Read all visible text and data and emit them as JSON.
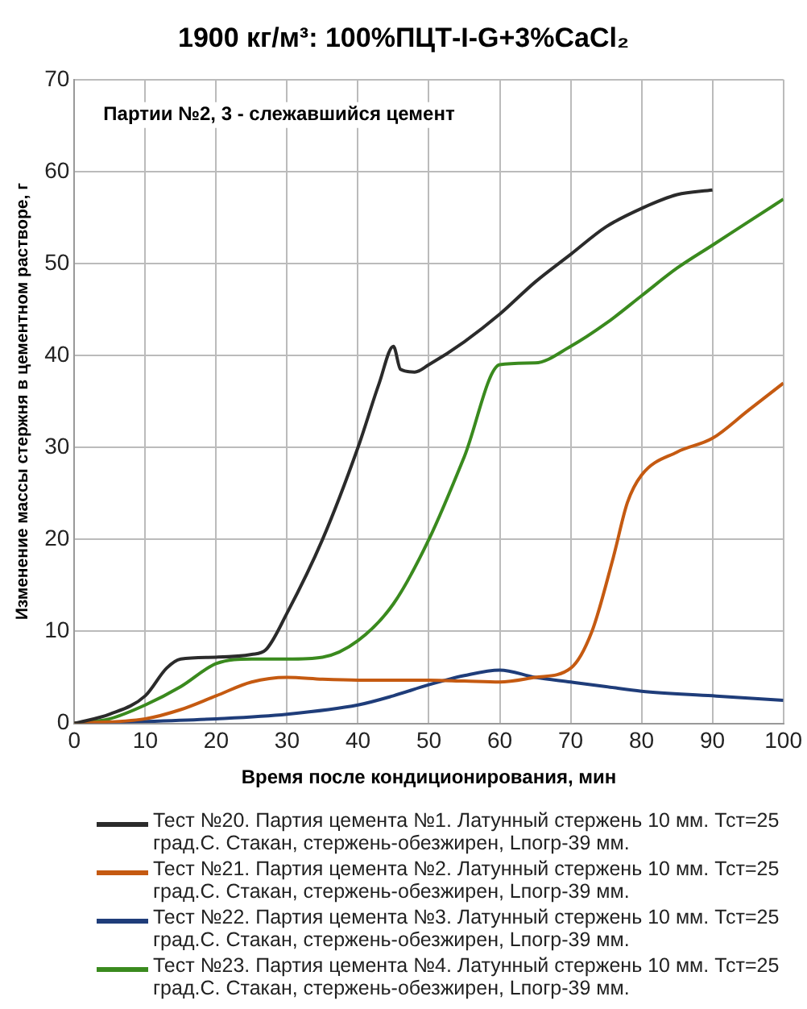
{
  "chart_data": {
    "type": "line",
    "title": "1900 кг/м³: 100%ПЦТ-I-G+3%CaCl₂",
    "xlabel": "Время после кондиционирования, мин",
    "ylabel": "Изменение массы стержня в цементном растворе, г",
    "annotations": [
      "Партии №2, 3 - слежавшийся цемент"
    ],
    "xlim": [
      0,
      100
    ],
    "xticks": [
      0,
      10,
      20,
      30,
      40,
      50,
      60,
      70,
      80,
      90,
      100
    ],
    "ylim": [
      0,
      70
    ],
    "yticks": [
      0,
      10,
      20,
      30,
      40,
      50,
      60,
      70
    ],
    "grid": true,
    "legend": "bottom",
    "marker": "none",
    "line_style": "solid",
    "series": [
      {
        "name": "Тест №20. Партия цемента №1. Латунный стержень 10 мм. Тст=25 град.С. Стакан, стержень-обезжирен, Lпогр-39 мм.",
        "color": "#2b2b2b",
        "x": [
          0,
          5,
          10,
          13,
          15,
          20,
          25,
          27,
          30,
          35,
          40,
          43,
          45,
          46,
          48,
          50,
          55,
          60,
          65,
          70,
          75,
          80,
          85,
          90
        ],
        "values": [
          0,
          1,
          3,
          6,
          7,
          7.2,
          7.5,
          8,
          12,
          20,
          30,
          37,
          41,
          38.5,
          38.2,
          39,
          41.5,
          44.5,
          48,
          51,
          54,
          56,
          57.5,
          58
        ]
      },
      {
        "name": "Тест №21. Партия цемента №2. Латунный стержень 10 мм. Тст=25 град.С. Стакан, стержень-обезжирен, Lпогр-39 мм.",
        "color": "#c55a11",
        "x": [
          0,
          10,
          15,
          20,
          25,
          30,
          35,
          40,
          50,
          55,
          60,
          65,
          70,
          73,
          76,
          78,
          80,
          85,
          90,
          95,
          100
        ],
        "values": [
          0,
          0.5,
          1.5,
          3,
          4.5,
          5,
          4.8,
          4.7,
          4.7,
          4.6,
          4.5,
          5,
          6,
          10,
          18,
          24,
          27,
          29.5,
          31,
          34,
          37
        ]
      },
      {
        "name": "Тест №22. Партия цемента №3. Латунный стержень 10 мм. Тст=25 град.С. Стакан, стержень-обезжирен, Lпогр-39 мм.",
        "color": "#1f3d7a",
        "x": [
          0,
          10,
          20,
          30,
          40,
          45,
          50,
          55,
          60,
          65,
          70,
          75,
          80,
          90,
          100
        ],
        "values": [
          0,
          0.2,
          0.5,
          1,
          2,
          3,
          4.2,
          5.2,
          5.8,
          5,
          4.5,
          4,
          3.5,
          3,
          2.5
        ]
      },
      {
        "name": "Тест №23. Партия цемента №4. Латунный стержень 10 мм. Тст=25 град.С. Стакан, стержень-обезжирен, Lпогр-39 мм.",
        "color": "#3a8a1e",
        "x": [
          0,
          5,
          10,
          15,
          20,
          25,
          30,
          35,
          40,
          45,
          50,
          55,
          60,
          65,
          70,
          75,
          80,
          85,
          90,
          95,
          100
        ],
        "values": [
          0,
          0.5,
          2,
          4,
          6.5,
          7,
          7,
          7.2,
          9,
          13,
          20,
          29,
          39,
          39.2,
          41,
          43.5,
          46.5,
          49.5,
          52,
          54.5,
          57
        ]
      }
    ]
  }
}
